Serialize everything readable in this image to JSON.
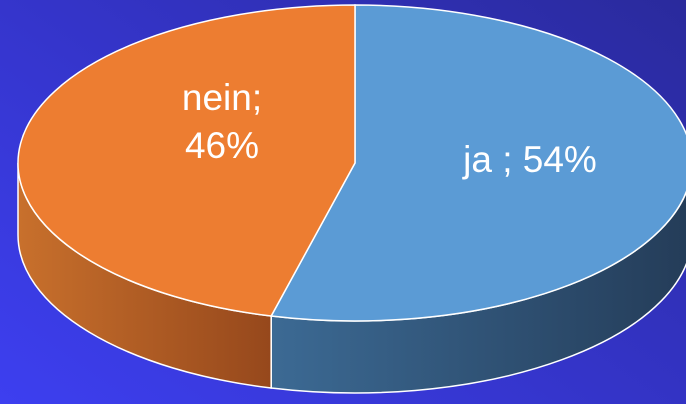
{
  "chart_data": {
    "type": "pie3d",
    "categories": [
      "ja",
      "nein"
    ],
    "values": [
      54,
      46
    ],
    "value_labels": [
      "ja ; 54%",
      "nein; 46%"
    ],
    "colors": [
      "#5b9bd5",
      "#ed7d31"
    ]
  }
}
